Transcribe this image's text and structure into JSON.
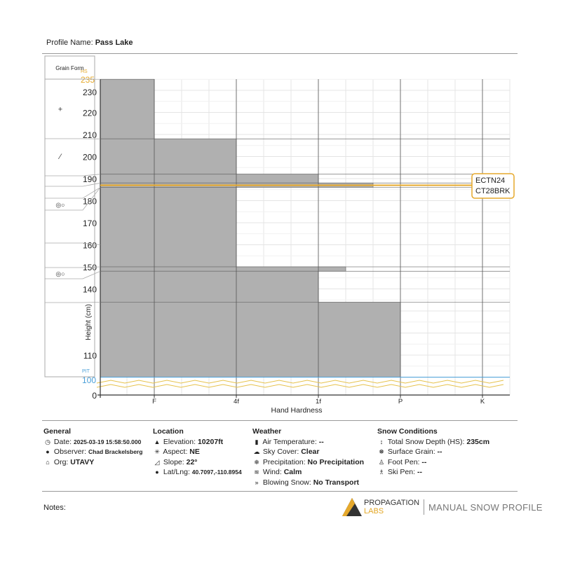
{
  "header": {
    "profile_name_label": "Profile Name:",
    "profile_name": "Pass Lake"
  },
  "grain_form": {
    "title": "Grain Form",
    "symbols": [
      "+",
      "⁄",
      "◎○",
      "◎○"
    ]
  },
  "colors": {
    "layer_fill": "#b0b0b0",
    "test_line": "#e6a92c",
    "pit_line": "#4a9fd8",
    "hs_label": "#e6a92c"
  },
  "chart_data": {
    "type": "bar",
    "orientation": "horizontal",
    "xlabel": "Hand Hardness",
    "ylabel": "Height (cm)",
    "x_ticks": [
      "F",
      "4f",
      "1f",
      "P",
      "K"
    ],
    "y_ticks": [
      230,
      220,
      210,
      200,
      190,
      180,
      170,
      160,
      150,
      140,
      110
    ],
    "y_zero_label": "0",
    "hs": {
      "label": "HS",
      "value": 235
    },
    "pit": {
      "label": "PIT",
      "value": 100
    },
    "layers": [
      {
        "top": 235,
        "bottom": 208,
        "hardness": "F"
      },
      {
        "top": 208,
        "bottom": 192,
        "hardness": "4F"
      },
      {
        "top": 192,
        "bottom": 188,
        "hardness": "1F"
      },
      {
        "top": 188,
        "bottom": 186,
        "hardness": "P-"
      },
      {
        "top": 186,
        "bottom": 150,
        "hardness": "4F"
      },
      {
        "top": 150,
        "bottom": 148,
        "hardness": "1F+"
      },
      {
        "top": 148,
        "bottom": 134,
        "hardness": "1F"
      },
      {
        "top": 134,
        "bottom": 100,
        "hardness": "P"
      }
    ],
    "tests": [
      {
        "height": 187,
        "lines": [
          "ECTN24",
          "CT28BRK"
        ]
      }
    ],
    "grid": true
  },
  "general": {
    "title": "General",
    "date_label": "Date:",
    "date": "2025-03-19 15:58:50.000",
    "observer_label": "Observer:",
    "observer": "Chad Brackelsberg",
    "org_label": "Org:",
    "org": "UTAVY"
  },
  "location": {
    "title": "Location",
    "elevation_label": "Elevation:",
    "elevation": "10207ft",
    "aspect_label": "Aspect:",
    "aspect": "NE",
    "slope_label": "Slope:",
    "slope": "22°",
    "latlng_label": "Lat/Lng:",
    "latlng": "40.7097,-110.8954"
  },
  "weather": {
    "title": "Weather",
    "air_temp_label": "Air Temperature:",
    "air_temp": "--",
    "sky_label": "Sky Cover:",
    "sky": "Clear",
    "precip_label": "Precipitation:",
    "precip": "No Precipitation",
    "wind_label": "Wind:",
    "wind": "Calm",
    "blowing_label": "Blowing Snow:",
    "blowing": "No Transport"
  },
  "snow": {
    "title": "Snow Conditions",
    "hs_label": "Total Snow Depth (HS):",
    "hs": "235cm",
    "surface_label": "Surface Grain:",
    "surface": "--",
    "foot_label": "Foot Pen:",
    "foot": "--",
    "ski_label": "Ski Pen:",
    "ski": "--"
  },
  "footer": {
    "notes_label": "Notes:",
    "logo_top": "PROPAGATION",
    "logo_bottom": "LABS",
    "product": "MANUAL SNOW PROFILE"
  }
}
